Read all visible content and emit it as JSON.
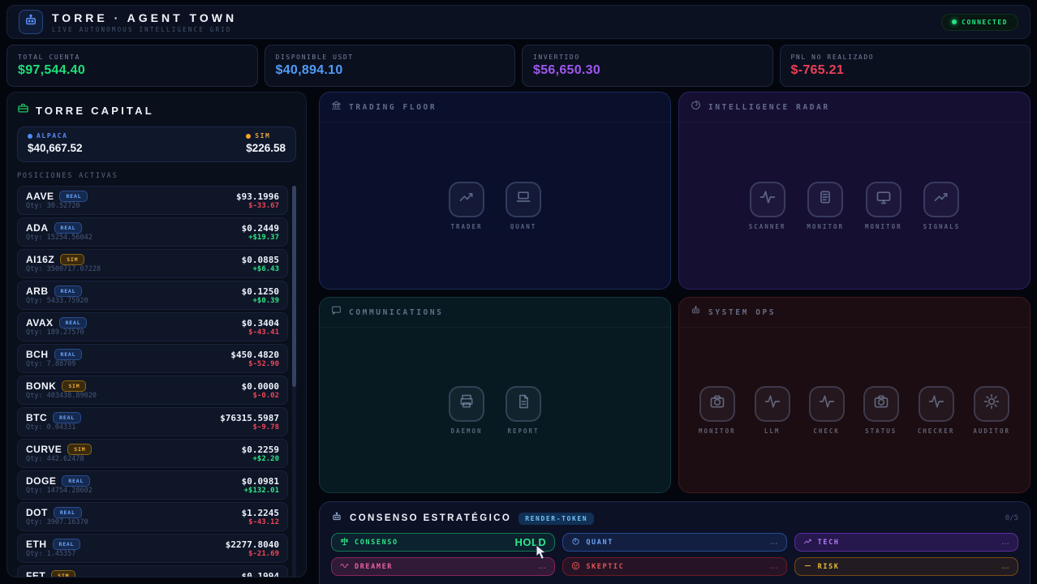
{
  "header": {
    "logo_icon": "robot-icon",
    "title": "TORRE · AGENT TOWN",
    "subtitle": "LIVE AUTONOMOUS INTELLIGENCE GRID",
    "status": "CONNECTED",
    "status_color": "#22e584"
  },
  "stats": [
    {
      "label": "TOTAL CUENTA",
      "value": "$97,544.40",
      "color": "#1fe077"
    },
    {
      "label": "DISPONIBLE USDT",
      "value": "$40,894.10",
      "color": "#4f9cf7"
    },
    {
      "label": "INVERTIDO",
      "value": "$56,650.30",
      "color": "#9f57ee"
    },
    {
      "label": "PNL NO REALIZADO",
      "value": "$-765.21",
      "color": "#ee3f55"
    }
  ],
  "capital": {
    "icon": "briefcase-icon",
    "title": "TORRE CAPITAL",
    "accounts": [
      {
        "name": "ALPACA",
        "value": "$40,667.52",
        "color": "#5b8ef5",
        "dot": "#4d8df7"
      },
      {
        "name": "SIM",
        "value": "$226.58",
        "color": "#eda33b",
        "dot": "#f5a623"
      }
    ],
    "positions_label": "POSICIONES ACTIVAS",
    "positions": [
      {
        "symbol": "AAVE",
        "badge": "REAL",
        "price": "$93.1996",
        "qty": "Qty: 30.52720",
        "pnl": "$-33.67",
        "dir": "down"
      },
      {
        "symbol": "ADA",
        "badge": "REAL",
        "price": "$0.2449",
        "qty": "Qty: 15254.56042",
        "pnl": "+$19.37",
        "dir": "up"
      },
      {
        "symbol": "AI16Z",
        "badge": "SIM",
        "price": "$0.0885",
        "qty": "Qty: 3500717.07228",
        "pnl": "+$6.43",
        "dir": "up"
      },
      {
        "symbol": "ARB",
        "badge": "REAL",
        "price": "$0.1250",
        "qty": "Qty: 5433.75920",
        "pnl": "+$0.39",
        "dir": "up"
      },
      {
        "symbol": "AVAX",
        "badge": "REAL",
        "price": "$0.3404",
        "qty": "Qty: 189.27570",
        "pnl": "$-43.41",
        "dir": "down"
      },
      {
        "symbol": "BCH",
        "badge": "REAL",
        "price": "$450.4820",
        "qty": "Qty: 7.88709",
        "pnl": "$-52.90",
        "dir": "down"
      },
      {
        "symbol": "BONK",
        "badge": "SIM",
        "price": "$0.0000",
        "qty": "Qty: 403438.89020",
        "pnl": "$-0.02",
        "dir": "down"
      },
      {
        "symbol": "BTC",
        "badge": "REAL",
        "price": "$76315.5987",
        "qty": "Qty: 0.04331",
        "pnl": "$-9.78",
        "dir": "down"
      },
      {
        "symbol": "CURVE",
        "badge": "SIM",
        "price": "$0.2259",
        "qty": "Qty: 442.62478",
        "pnl": "+$2.20",
        "dir": "up"
      },
      {
        "symbol": "DOGE",
        "badge": "REAL",
        "price": "$0.0981",
        "qty": "Qty: 14754.28602",
        "pnl": "+$132.01",
        "dir": "up"
      },
      {
        "symbol": "DOT",
        "badge": "REAL",
        "price": "$1.2245",
        "qty": "Qty: 3907.16370",
        "pnl": "$-43.12",
        "dir": "down"
      },
      {
        "symbol": "ETH",
        "badge": "REAL",
        "price": "$2277.8040",
        "qty": "Qty: 1.45357",
        "pnl": "$-21.69",
        "dir": "down"
      },
      {
        "symbol": "FET",
        "badge": "SIM",
        "price": "$0.1994",
        "qty": "",
        "pnl": "",
        "dir": "up"
      }
    ]
  },
  "zones": {
    "trading": {
      "icon": "bank-icon",
      "title": "TRADING FLOOR",
      "agents": [
        {
          "name": "TRADER",
          "icon": "chart-up-icon"
        },
        {
          "name": "QUANT",
          "icon": "laptop-icon"
        }
      ]
    },
    "radar": {
      "icon": "radar-spiral-icon",
      "title": "INTELLIGENCE RADAR",
      "agents": [
        {
          "name": "SCANNER",
          "icon": "pulse-icon"
        },
        {
          "name": "MONITOR",
          "icon": "clipboard-icon"
        },
        {
          "name": "MONITOR",
          "icon": "screen-icon"
        },
        {
          "name": "SIGNALS",
          "icon": "chart-up-icon"
        }
      ]
    },
    "comms": {
      "icon": "chat-icon",
      "title": "COMMUNICATIONS",
      "agents": [
        {
          "name": "DAEMON",
          "icon": "printer-icon"
        },
        {
          "name": "REPORT",
          "icon": "document-icon"
        }
      ]
    },
    "sysops": {
      "icon": "robot-icon",
      "title": "SYSTEM OPS",
      "agents": [
        {
          "name": "MONITOR",
          "icon": "camera-icon"
        },
        {
          "name": "LLM",
          "icon": "pulse-icon"
        },
        {
          "name": "CHECK",
          "icon": "pulse-icon"
        },
        {
          "name": "STATUS",
          "icon": "camera-icon"
        },
        {
          "name": "CHECKER",
          "icon": "pulse-icon"
        },
        {
          "name": "AUDITOR",
          "icon": "gear-icon"
        }
      ]
    }
  },
  "consensus": {
    "icon": "robot-icon",
    "title": "CONSENSO ESTRATÉGICO",
    "badge": "RENDER-TOKEN",
    "counter": "0/5",
    "agents": [
      {
        "name": "CONSENSO",
        "icon": "balance-scale-icon",
        "value": "HOLD",
        "theme": "green"
      },
      {
        "name": "QUANT",
        "icon": "brain-icon",
        "value": "...",
        "theme": "blue"
      },
      {
        "name": "TECH",
        "icon": "trend-up-icon",
        "value": "...",
        "theme": "purple"
      },
      {
        "name": "DREAMER",
        "icon": "wave-icon",
        "value": "...",
        "theme": "pink"
      },
      {
        "name": "SKEPTIC",
        "icon": "thinking-face-icon",
        "value": "...",
        "theme": "red"
      },
      {
        "name": "RISK",
        "icon": "dash-icon",
        "value": "...",
        "theme": "amber"
      }
    ]
  }
}
